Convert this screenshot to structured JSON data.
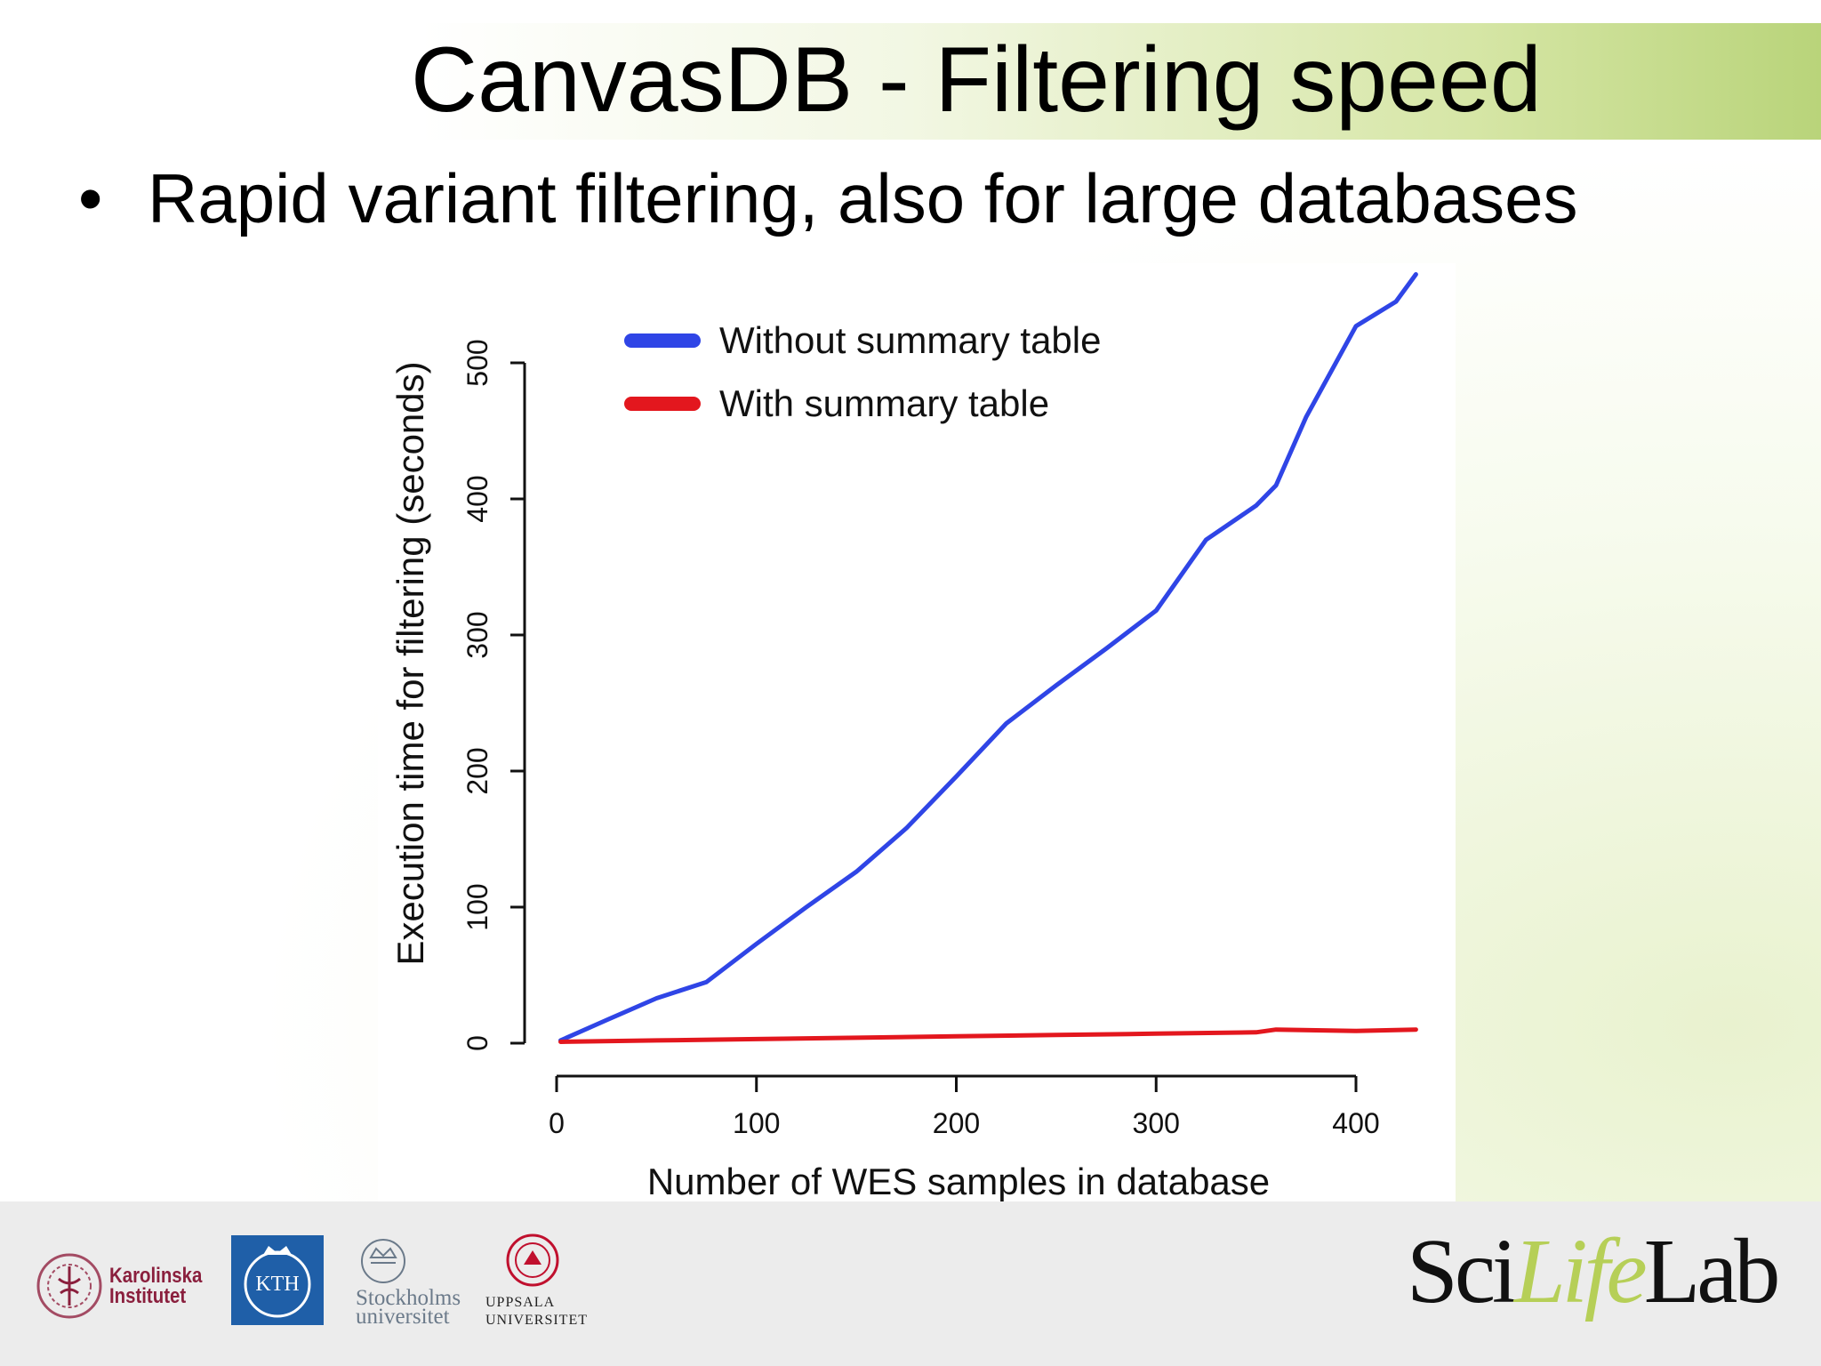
{
  "slide": {
    "title": "CanvasDB - Filtering speed",
    "bullet": "Rapid variant filtering, also for large databases"
  },
  "chart_data": {
    "type": "line",
    "xlabel": "Number of WES samples in database",
    "ylabel": "Execution time for filtering (seconds)",
    "xticks": [
      0,
      100,
      200,
      300,
      400
    ],
    "yticks": [
      0,
      100,
      200,
      300,
      400,
      500
    ],
    "xlim": [
      0,
      430
    ],
    "ylim": [
      0,
      500
    ],
    "legend_position": "top-left",
    "grid": false,
    "series": [
      {
        "name": "Without summary table",
        "color": "#2f45e6",
        "x": [
          2,
          25,
          50,
          75,
          100,
          125,
          150,
          175,
          200,
          225,
          250,
          275,
          300,
          325,
          350,
          360,
          375,
          400,
          420,
          430
        ],
        "y": [
          2,
          17,
          33,
          45,
          73,
          100,
          126,
          158,
          196,
          235,
          263,
          290,
          318,
          370,
          395,
          410,
          460,
          527,
          545,
          565
        ]
      },
      {
        "name": "With summary table",
        "color": "#e3171e",
        "x": [
          2,
          50,
          100,
          150,
          200,
          250,
          300,
          350,
          360,
          400,
          430
        ],
        "y": [
          1,
          2,
          3,
          4,
          5,
          6,
          7,
          8,
          10,
          9,
          10
        ]
      }
    ]
  },
  "footer": {
    "logos": {
      "karolinska": "Karolinska\nInstitutet",
      "kth": "KTH",
      "stockholm": "Stockholms\nuniversitet",
      "uppsala": "UPPSALA\nUNIVERSITET",
      "scilifelab_pre": "Sci",
      "scilifelab_life": "Life",
      "scilifelab_post": "Lab"
    }
  }
}
